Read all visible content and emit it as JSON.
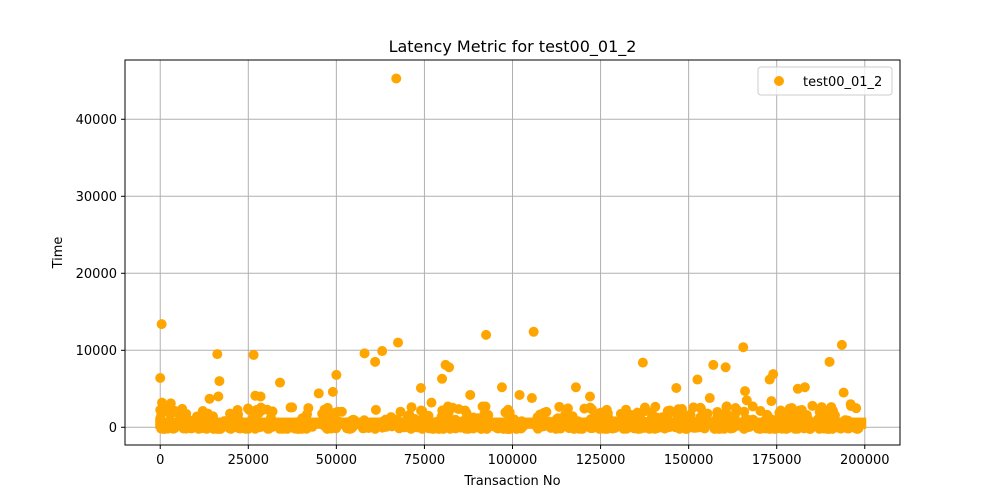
{
  "chart_data": {
    "type": "scatter",
    "title": "Latency Metric for test00_01_2",
    "xlabel": "Transaction No",
    "ylabel": "Time",
    "xlim": [
      -10000,
      210000
    ],
    "ylim": [
      -2300,
      47700
    ],
    "xticks": [
      0,
      25000,
      50000,
      75000,
      100000,
      125000,
      150000,
      175000,
      200000
    ],
    "yticks": [
      0,
      10000,
      20000,
      30000,
      40000
    ],
    "grid": true,
    "legend_position": "top-right",
    "series": [
      {
        "name": "test00_01_2",
        "color": "#FFA500",
        "baseline_band": {
          "x_range": [
            0,
            199000
          ],
          "y_range": [
            0,
            2300
          ]
        },
        "points": [
          [
            0,
            6400
          ],
          [
            400,
            13400
          ],
          [
            500,
            3200
          ],
          [
            2500,
            2500
          ],
          [
            3000,
            3100
          ],
          [
            16200,
            9500
          ],
          [
            16800,
            6000
          ],
          [
            16500,
            4000
          ],
          [
            14000,
            3700
          ],
          [
            26500,
            9400
          ],
          [
            27000,
            4100
          ],
          [
            28500,
            4000
          ],
          [
            34000,
            5800
          ],
          [
            45000,
            4400
          ],
          [
            49000,
            4600
          ],
          [
            50000,
            6800
          ],
          [
            58000,
            9600
          ],
          [
            61000,
            8500
          ],
          [
            63000,
            9900
          ],
          [
            67000,
            45300
          ],
          [
            67500,
            11000
          ],
          [
            74000,
            5100
          ],
          [
            77000,
            3200
          ],
          [
            80000,
            6300
          ],
          [
            81000,
            8100
          ],
          [
            82000,
            7800
          ],
          [
            88000,
            4200
          ],
          [
            92500,
            12000
          ],
          [
            97000,
            5200
          ],
          [
            102000,
            4200
          ],
          [
            105500,
            3800
          ],
          [
            106000,
            12400
          ],
          [
            118000,
            5200
          ],
          [
            122000,
            4000
          ],
          [
            137000,
            8400
          ],
          [
            146500,
            5100
          ],
          [
            152500,
            6200
          ],
          [
            156000,
            3800
          ],
          [
            157000,
            8100
          ],
          [
            160500,
            7800
          ],
          [
            165500,
            10400
          ],
          [
            166000,
            4700
          ],
          [
            166500,
            3500
          ],
          [
            173000,
            6200
          ],
          [
            174000,
            6900
          ],
          [
            173500,
            3400
          ],
          [
            181000,
            5000
          ],
          [
            183000,
            5200
          ],
          [
            190000,
            8500
          ],
          [
            193500,
            10700
          ],
          [
            194000,
            4500
          ],
          [
            196000,
            3000
          ]
        ]
      }
    ]
  }
}
